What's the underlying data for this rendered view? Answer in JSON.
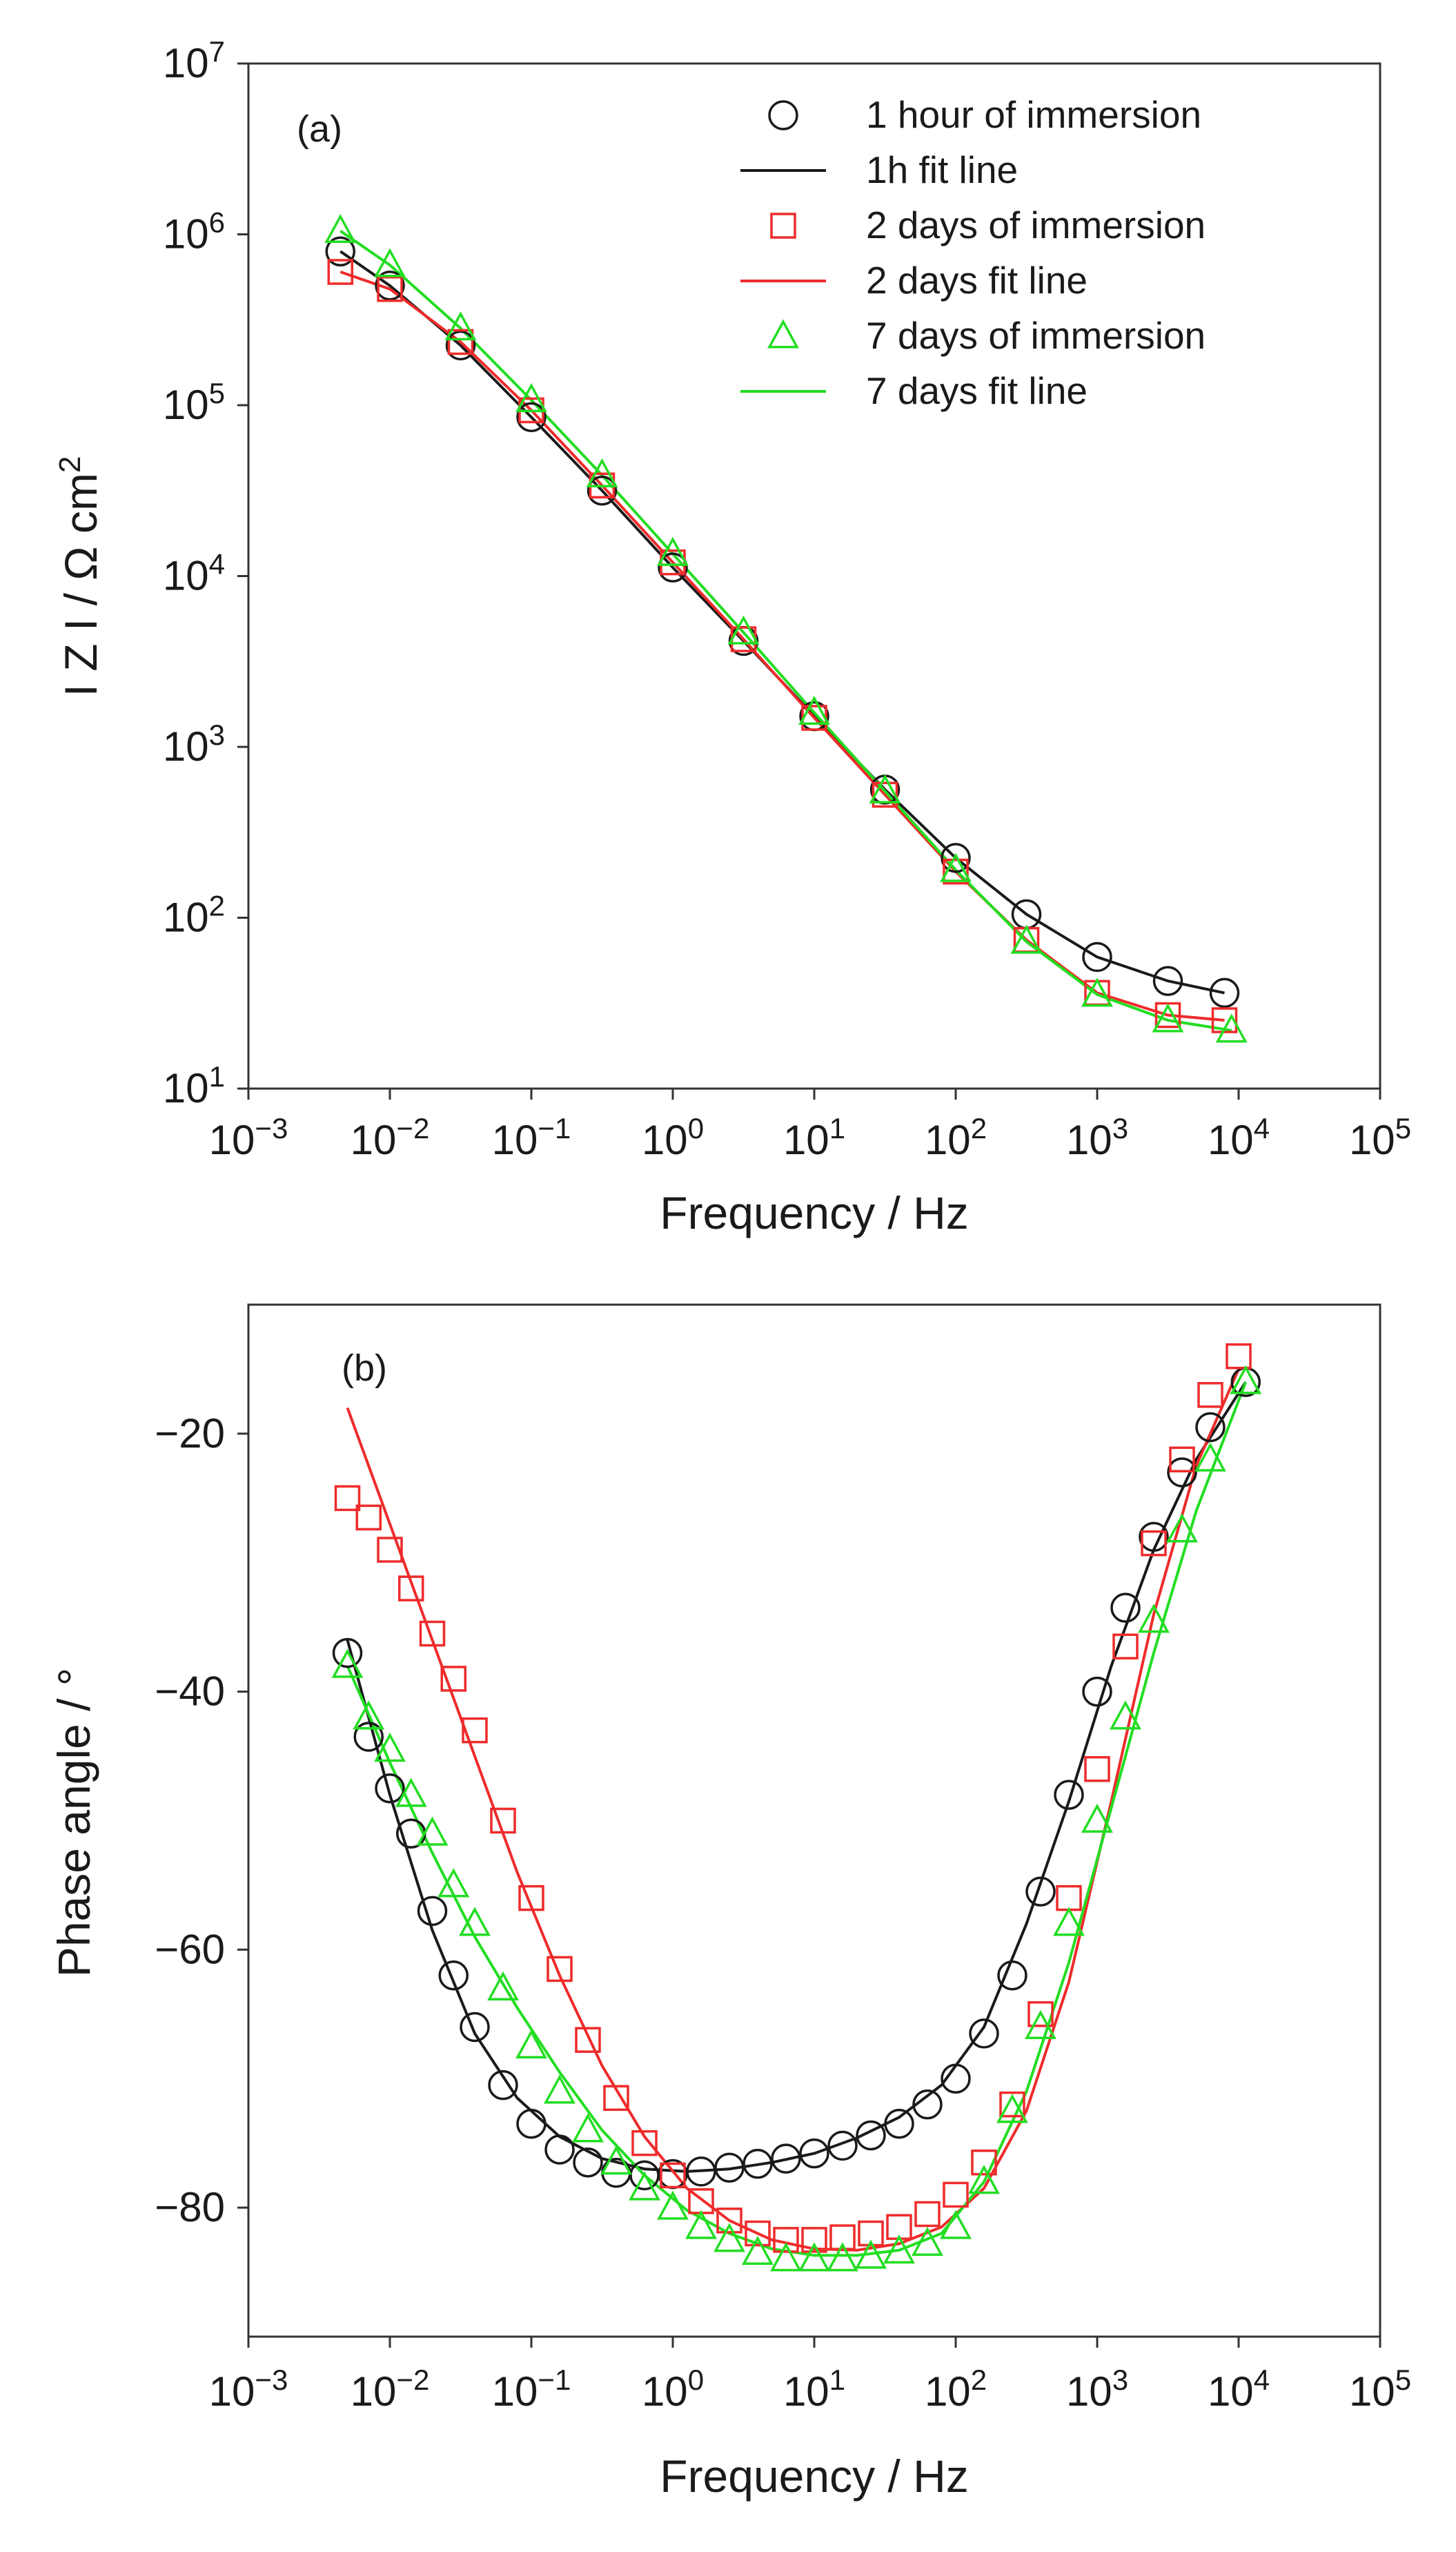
{
  "chart_data": [
    {
      "type": "line",
      "panel_label": "(a)",
      "xlabel": "Frequency / Hz",
      "ylabel": "I Z I / Ω cm",
      "ylabel_sup": "2",
      "xscale": "log",
      "yscale": "log",
      "xlim_exp": [
        -3,
        5
      ],
      "ylim_exp": [
        1,
        7
      ],
      "x_ticks": [
        {
          "base": "10",
          "exp": "−3"
        },
        {
          "base": "10",
          "exp": "−2"
        },
        {
          "base": "10",
          "exp": "−1"
        },
        {
          "base": "10",
          "exp": "0"
        },
        {
          "base": "10",
          "exp": "1"
        },
        {
          "base": "10",
          "exp": "2"
        },
        {
          "base": "10",
          "exp": "3"
        },
        {
          "base": "10",
          "exp": "4"
        },
        {
          "base": "10",
          "exp": "5"
        }
      ],
      "y_ticks": [
        {
          "base": "10",
          "exp": "1"
        },
        {
          "base": "10",
          "exp": "2"
        },
        {
          "base": "10",
          "exp": "3"
        },
        {
          "base": "10",
          "exp": "4"
        },
        {
          "base": "10",
          "exp": "5"
        },
        {
          "base": "10",
          "exp": "6"
        },
        {
          "base": "10",
          "exp": "7"
        }
      ],
      "legend_position": "top-right",
      "legend": [
        {
          "label": "1 hour of immersion",
          "kind": "marker",
          "marker": "circle",
          "color": "#1a1a1a"
        },
        {
          "label": "1h fit  line",
          "kind": "line",
          "color": "#1a1a1a"
        },
        {
          "label": "2 days of immersion",
          "kind": "marker",
          "marker": "square",
          "color": "#ee2b2b"
        },
        {
          "label": "2 days fit line",
          "kind": "line",
          "color": "#ee2b2b"
        },
        {
          "label": "7 days of immersion",
          "kind": "marker",
          "marker": "triangle",
          "color": "#22dd22"
        },
        {
          "label": "7 days fit line",
          "kind": "line",
          "color": "#22dd22"
        }
      ],
      "series": [
        {
          "name": "1 hour of immersion",
          "marker": "circle",
          "color": "#1a1a1a",
          "log_x": [
            -2.35,
            -2.0,
            -1.5,
            -1.0,
            -0.5,
            0.0,
            0.5,
            1.0,
            1.5,
            2.0,
            2.5,
            3.0,
            3.5,
            3.9
          ],
          "log_y": [
            5.9,
            5.7,
            5.35,
            4.93,
            4.5,
            4.05,
            3.62,
            3.18,
            2.75,
            2.35,
            2.02,
            1.77,
            1.63,
            1.56
          ]
        },
        {
          "name": "2 days of immersion",
          "marker": "square",
          "color": "#ee2b2b",
          "log_x": [
            -2.35,
            -2.0,
            -1.5,
            -1.0,
            -0.5,
            0.0,
            0.5,
            1.0,
            1.5,
            2.0,
            2.5,
            3.0,
            3.5,
            3.9
          ],
          "log_y": [
            5.78,
            5.68,
            5.37,
            4.97,
            4.53,
            4.08,
            3.63,
            3.17,
            2.72,
            2.27,
            1.87,
            1.56,
            1.43,
            1.4
          ]
        },
        {
          "name": "7 days of immersion",
          "marker": "triangle",
          "color": "#22dd22",
          "log_x": [
            -2.35,
            -2.0,
            -1.5,
            -1.0,
            -0.5,
            0.0,
            0.5,
            1.0,
            1.5,
            2.0,
            2.5,
            3.0,
            3.5,
            3.95
          ],
          "log_y": [
            6.02,
            5.82,
            5.45,
            5.03,
            4.59,
            4.13,
            3.67,
            3.2,
            2.74,
            2.28,
            1.86,
            1.55,
            1.4,
            1.34
          ]
        }
      ]
    },
    {
      "type": "line",
      "panel_label": "(b)",
      "xlabel": "Frequency / Hz",
      "ylabel": "Phase angle / °",
      "xscale": "log",
      "xlim_exp": [
        -3,
        5
      ],
      "ylim": [
        -10,
        -90
      ],
      "x_ticks": [
        {
          "base": "10",
          "exp": "−3"
        },
        {
          "base": "10",
          "exp": "−2"
        },
        {
          "base": "10",
          "exp": "−1"
        },
        {
          "base": "10",
          "exp": "0"
        },
        {
          "base": "10",
          "exp": "1"
        },
        {
          "base": "10",
          "exp": "2"
        },
        {
          "base": "10",
          "exp": "3"
        },
        {
          "base": "10",
          "exp": "4"
        },
        {
          "base": "10",
          "exp": "5"
        }
      ],
      "y_ticks": [
        {
          "value": -20,
          "label": "−20"
        },
        {
          "value": -40,
          "label": "−40"
        },
        {
          "value": -60,
          "label": "−60"
        },
        {
          "value": -80,
          "label": "−80"
        }
      ],
      "series": [
        {
          "name": "1 hour of immersion",
          "marker": "circle",
          "color": "#1a1a1a",
          "log_x": [
            -2.3,
            -2.15,
            -2.0,
            -1.85,
            -1.7,
            -1.55,
            -1.4,
            -1.2,
            -1.0,
            -0.8,
            -0.6,
            -0.4,
            -0.2,
            0.0,
            0.2,
            0.4,
            0.6,
            0.8,
            1.0,
            1.2,
            1.4,
            1.6,
            1.8,
            2.0,
            2.2,
            2.4,
            2.6,
            2.8,
            3.0,
            3.2,
            3.4,
            3.6,
            3.8,
            4.05
          ],
          "y": [
            -37,
            -43.5,
            -47.5,
            -51,
            -57,
            -62,
            -66,
            -70.5,
            -73.5,
            -75.5,
            -76.5,
            -77.3,
            -77.5,
            -77.4,
            -77.2,
            -76.9,
            -76.6,
            -76.2,
            -75.8,
            -75.2,
            -74.4,
            -73.5,
            -72,
            -70,
            -66.5,
            -62,
            -55.5,
            -48,
            -40,
            -33.5,
            -28,
            -23,
            -19.5,
            -16
          ]
        },
        {
          "name": "1h fit line",
          "color": "#1a1a1a",
          "log_x": [
            -2.3,
            -2.0,
            -1.7,
            -1.4,
            -1.1,
            -0.8,
            -0.5,
            -0.2,
            0.1,
            0.4,
            0.7,
            1.0,
            1.3,
            1.6,
            1.9,
            2.2,
            2.5,
            2.8,
            3.1,
            3.4,
            3.7,
            4.05
          ],
          "y": [
            -36,
            -48,
            -58.5,
            -66.5,
            -71.5,
            -74.5,
            -76.2,
            -77,
            -77.2,
            -77,
            -76.5,
            -75.8,
            -74.6,
            -73,
            -70.5,
            -66,
            -58,
            -48.5,
            -38,
            -29,
            -22,
            -16
          ]
        },
        {
          "name": "2 days of immersion",
          "marker": "square",
          "color": "#ee2b2b",
          "log_x": [
            -2.3,
            -2.15,
            -2.0,
            -1.85,
            -1.7,
            -1.55,
            -1.4,
            -1.2,
            -1.0,
            -0.8,
            -0.6,
            -0.4,
            -0.2,
            0.0,
            0.2,
            0.4,
            0.6,
            0.8,
            1.0,
            1.2,
            1.4,
            1.6,
            1.8,
            2.0,
            2.2,
            2.4,
            2.6,
            2.8,
            3.0,
            3.2,
            3.4,
            3.6,
            3.8,
            4.0
          ],
          "y": [
            -25,
            -26.5,
            -29,
            -32,
            -35.5,
            -39,
            -43,
            -50,
            -56,
            -61.5,
            -67,
            -71.5,
            -75,
            -77.5,
            -79.5,
            -81,
            -82,
            -82.5,
            -82.5,
            -82.3,
            -82,
            -81.5,
            -80.5,
            -79,
            -76.5,
            -72,
            -65,
            -56,
            -46,
            -36.5,
            -28.5,
            -22,
            -17,
            -14
          ]
        },
        {
          "name": "2 days fit line",
          "color": "#ee2b2b",
          "log_x": [
            -2.3,
            -2.0,
            -1.7,
            -1.4,
            -1.1,
            -0.8,
            -0.5,
            -0.2,
            0.1,
            0.4,
            0.7,
            1.0,
            1.3,
            1.6,
            1.9,
            2.2,
            2.5,
            2.8,
            3.1,
            3.4,
            3.7,
            4.0
          ],
          "y": [
            -18,
            -27,
            -36,
            -45,
            -54,
            -62,
            -69,
            -74.5,
            -78.5,
            -81,
            -82.5,
            -83.2,
            -83.3,
            -82.8,
            -81.5,
            -78.5,
            -72.5,
            -62.5,
            -48.5,
            -34,
            -22.5,
            -15
          ]
        },
        {
          "name": "7 days of immersion",
          "marker": "triangle",
          "color": "#22dd22",
          "log_x": [
            -2.3,
            -2.15,
            -2.0,
            -1.85,
            -1.7,
            -1.55,
            -1.4,
            -1.2,
            -1.0,
            -0.8,
            -0.6,
            -0.4,
            -0.2,
            0.0,
            0.2,
            0.4,
            0.6,
            0.8,
            1.0,
            1.2,
            1.4,
            1.6,
            1.8,
            2.0,
            2.2,
            2.4,
            2.6,
            2.8,
            3.0,
            3.2,
            3.4,
            3.6,
            3.8,
            4.05
          ],
          "y": [
            -38,
            -42,
            -44.5,
            -48,
            -51,
            -55,
            -58,
            -63,
            -67.5,
            -71,
            -74,
            -76.5,
            -78.5,
            -80,
            -81.5,
            -82.5,
            -83.5,
            -84,
            -84,
            -84,
            -83.8,
            -83.4,
            -82.8,
            -81.5,
            -78,
            -72.5,
            -66,
            -58,
            -50,
            -42,
            -34.5,
            -27.5,
            -22,
            -16
          ]
        },
        {
          "name": "7 days fit line",
          "color": "#22dd22",
          "log_x": [
            -2.3,
            -2.0,
            -1.7,
            -1.4,
            -1.1,
            -0.8,
            -0.5,
            -0.2,
            0.1,
            0.4,
            0.7,
            1.0,
            1.3,
            1.6,
            1.9,
            2.2,
            2.5,
            2.8,
            3.1,
            3.4,
            3.7,
            4.05
          ],
          "y": [
            -38,
            -45.5,
            -52.5,
            -59,
            -64.5,
            -69.5,
            -74,
            -77.5,
            -80.2,
            -82,
            -83.2,
            -83.7,
            -83.7,
            -83.3,
            -82,
            -78,
            -71,
            -61,
            -49,
            -37,
            -26,
            -16
          ]
        }
      ]
    }
  ]
}
